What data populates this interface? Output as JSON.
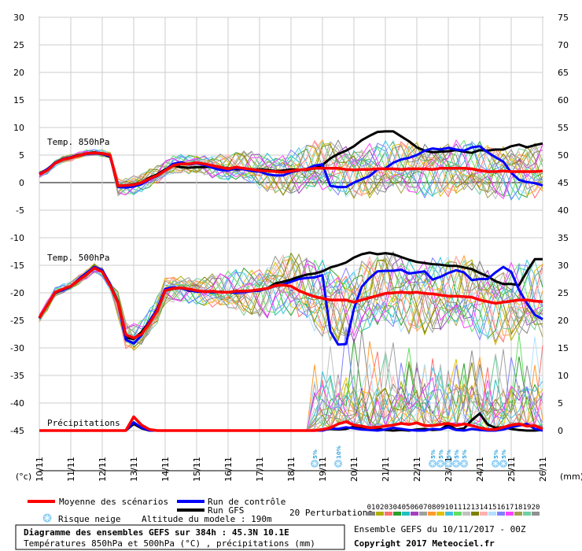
{
  "chart_data": {
    "type": "line",
    "y_left_ticks": [
      "30",
      "25",
      "20",
      "15",
      "10",
      "5",
      "0",
      "-5",
      "-10",
      "-15",
      "-20",
      "-25",
      "-30",
      "-35",
      "-40",
      "-45"
    ],
    "y_right_ticks": [
      "75",
      "70",
      "65",
      "60",
      "55",
      "50",
      "45",
      "40",
      "35",
      "30",
      "25",
      "20",
      "15",
      "10",
      "5",
      "0"
    ],
    "y_left_unit": "(°c)",
    "y_right_unit": "(mm)",
    "ylim_left": [
      -45,
      30
    ],
    "ylim_right": [
      0,
      75
    ],
    "x_labels": [
      "10/11",
      "11/11",
      "12/11",
      "13/11",
      "14/11",
      "15/11",
      "16/11",
      "17/11",
      "18/11",
      "19/11",
      "20/11",
      "21/11",
      "22/11",
      "23/11",
      "24/11",
      "25/11",
      "26/11"
    ],
    "section_labels": {
      "t850": "Temp. 850hPa",
      "t500": "Temp. 500hPa",
      "precip": "Précipitations"
    },
    "x_days": [
      0,
      0.25,
      0.5,
      0.75,
      1,
      1.25,
      1.5,
      1.75,
      2,
      2.25,
      2.5,
      2.75,
      3,
      3.25,
      3.5,
      3.75,
      4,
      4.25,
      4.5,
      4.75,
      5,
      5.25,
      5.5,
      5.75,
      6,
      6.25,
      6.5,
      6.75,
      7,
      7.25,
      7.5,
      7.75,
      8,
      8.25,
      8.5,
      8.75,
      9,
      9.25,
      9.5,
      9.75,
      10,
      10.25,
      10.5,
      10.75,
      11,
      11.25,
      11.5,
      11.75,
      12,
      12.25,
      12.5,
      12.75,
      13,
      13.25,
      13.5,
      13.75,
      14,
      14.25,
      14.5,
      14.75,
      15,
      15.25,
      15.5,
      15.75,
      16
    ],
    "series": [
      {
        "name": "Moyenne des scénarios",
        "role": "t850",
        "color": "#ff0000",
        "values": [
          1.5,
          2.2,
          3.5,
          4.2,
          4.5,
          4.9,
          5.3,
          5.4,
          5.3,
          5.0,
          -0.6,
          -0.5,
          -0.4,
          0,
          0.7,
          1.3,
          2.2,
          3.1,
          3.4,
          3.4,
          3.6,
          3.4,
          3.1,
          2.8,
          2.5,
          2.8,
          2.6,
          2.4,
          2.2,
          2.1,
          2.0,
          1.9,
          2.1,
          2.3,
          2.4,
          2.6,
          2.6,
          2.6,
          2.6,
          2.4,
          2.3,
          2.4,
          2.4,
          2.5,
          2.5,
          2.5,
          2.4,
          2.5,
          2.5,
          2.5,
          2.4,
          2.6,
          2.6,
          2.6,
          2.6,
          2.5,
          2.2,
          2.0,
          2.0,
          2.1,
          2.0,
          2.0,
          2.0,
          2.0,
          2.1
        ]
      },
      {
        "name": "Run de contrôle",
        "role": "t850",
        "color": "#0000ff",
        "values": [
          1.6,
          2.4,
          3.6,
          4.3,
          4.6,
          4.9,
          5.2,
          5.3,
          5.2,
          4.8,
          -0.8,
          -0.9,
          -0.7,
          -0.3,
          0.6,
          1.2,
          2.3,
          3.4,
          3.7,
          3.3,
          3.5,
          3.2,
          2.7,
          2.3,
          2.2,
          2.6,
          2.4,
          2.1,
          2.0,
          1.5,
          1.3,
          1.3,
          1.9,
          2.2,
          2.5,
          3.1,
          3.3,
          -0.6,
          -0.8,
          -0.8,
          0.0,
          0.6,
          1.2,
          2.4,
          2.6,
          3.6,
          4.2,
          4.5,
          5.0,
          5.8,
          6.2,
          6.0,
          6.3,
          6.0,
          5.8,
          6.4,
          6.6,
          5.5,
          4.6,
          3.8,
          1.8,
          0.5,
          0.1,
          -0.1,
          -0.5
        ]
      },
      {
        "name": "Run GFS",
        "role": "t850",
        "color": "#000000",
        "values": [
          1.6,
          2.2,
          3.6,
          4.2,
          4.6,
          5.0,
          5.3,
          5.5,
          5.2,
          4.7,
          -0.6,
          -0.6,
          -0.3,
          0,
          0.9,
          1.5,
          2.4,
          3.1,
          2.8,
          2.7,
          2.8,
          2.8,
          2.9,
          2.6,
          2.6,
          2.4,
          2.5,
          2.4,
          2.4,
          2.3,
          2.1,
          2.2,
          2.4,
          2.3,
          2.3,
          2.6,
          3.2,
          4.4,
          5.2,
          5.8,
          6.6,
          7.7,
          8.5,
          9.2,
          9.3,
          9.3,
          8.4,
          7.5,
          6.4,
          5.8,
          5.5,
          5.6,
          5.7,
          5.9,
          5.6,
          5.4,
          5.9,
          5.8,
          6.0,
          6.0,
          6.6,
          6.9,
          6.4,
          6.8,
          7.1
        ]
      },
      {
        "name": "Moyenne des scénarios",
        "role": "t500",
        "color": "#ff0000",
        "values": [
          -24.5,
          -22.3,
          -19.9,
          -19.3,
          -18.8,
          -17.7,
          -16.7,
          -15.5,
          -16.2,
          -18.7,
          -21.8,
          -27.6,
          -28.2,
          -27.5,
          -25.5,
          -23.3,
          -19.6,
          -19.2,
          -19.1,
          -19.3,
          -19.6,
          -19.8,
          -19.7,
          -19.9,
          -19.9,
          -19.7,
          -19.7,
          -19.6,
          -19.4,
          -19.2,
          -18.7,
          -18.6,
          -18.8,
          -19.6,
          -20.2,
          -20.7,
          -21.0,
          -21.3,
          -21.3,
          -21.3,
          -21.7,
          -21.3,
          -20.9,
          -20.5,
          -20.1,
          -20.0,
          -19.9,
          -20.0,
          -19.9,
          -20.1,
          -20.2,
          -20.4,
          -20.6,
          -20.6,
          -20.7,
          -20.8,
          -21.3,
          -21.6,
          -21.9,
          -21.7,
          -21.5,
          -21.3,
          -21.3,
          -21.5,
          -21.6
        ]
      },
      {
        "name": "Run de contrôle",
        "role": "t500",
        "color": "#0000ff",
        "values": [
          -24.6,
          -22.3,
          -19.9,
          -19.5,
          -18.9,
          -17.5,
          -16.4,
          -15.3,
          -15.9,
          -18.4,
          -21.9,
          -28.5,
          -29.2,
          -27.7,
          -25.1,
          -22.9,
          -19.3,
          -19.0,
          -19.2,
          -19.5,
          -19.8,
          -19.8,
          -19.9,
          -19.9,
          -19.9,
          -20.0,
          -19.9,
          -19.7,
          -19.6,
          -19.2,
          -18.8,
          -18.5,
          -18.0,
          -17.5,
          -17.3,
          -17.2,
          -16.8,
          -27.0,
          -29.4,
          -29.3,
          -22.9,
          -18.9,
          -17.3,
          -16.1,
          -16.0,
          -16.0,
          -15.8,
          -16.5,
          -16.3,
          -16.1,
          -17.6,
          -17.1,
          -16.4,
          -15.9,
          -16.3,
          -17.7,
          -17.5,
          -17.5,
          -16.3,
          -15.3,
          -16.2,
          -19.5,
          -21.9,
          -24.0,
          -24.8
        ]
      },
      {
        "name": "Run GFS",
        "role": "t500",
        "color": "#000000",
        "values": [
          -24.6,
          -22.2,
          -20.0,
          -19.5,
          -18.8,
          -17.6,
          -16.7,
          -15.3,
          -16.0,
          -18.5,
          -21.6,
          -28.1,
          -28.4,
          -27.1,
          -25.2,
          -23.0,
          -19.5,
          -19.3,
          -19.1,
          -19.6,
          -19.7,
          -19.8,
          -19.9,
          -19.8,
          -19.9,
          -19.7,
          -19.7,
          -19.6,
          -19.6,
          -19.2,
          -18.3,
          -18.0,
          -17.6,
          -17.1,
          -16.7,
          -16.5,
          -16.1,
          -15.4,
          -15.0,
          -14.5,
          -13.6,
          -13.0,
          -12.7,
          -13.0,
          -12.8,
          -13.0,
          -13.5,
          -14.0,
          -14.4,
          -14.6,
          -14.8,
          -14.9,
          -15.1,
          -15.1,
          -15.4,
          -15.7,
          -16.4,
          -17.0,
          -17.9,
          -18.4,
          -18.4,
          -18.6,
          -16.1,
          -13.9,
          -13.9
        ]
      },
      {
        "name": "Moyenne des scénarios",
        "role": "precip",
        "color": "#ff0000",
        "values": [
          0,
          0,
          0,
          0,
          0,
          0,
          0,
          0,
          0,
          0,
          0,
          0,
          2.5,
          1.0,
          0.2,
          0,
          0,
          0,
          0,
          0,
          0,
          0,
          0,
          0,
          0,
          0,
          0,
          0,
          0,
          0,
          0,
          0,
          0,
          0,
          0,
          0,
          0.2,
          0.5,
          1.2,
          1.6,
          1.0,
          0.8,
          0.5,
          0.6,
          0.8,
          1.0,
          1.3,
          1.1,
          1.4,
          0.9,
          0.9,
          1.1,
          1.3,
          0.9,
          1.2,
          0.9,
          0.5,
          0.2,
          0.2,
          0.6,
          1.0,
          1.2,
          0.8,
          0.9,
          0.3
        ]
      },
      {
        "name": "Run de contrôle",
        "role": "precip",
        "color": "#0000ff",
        "values": [
          0,
          0,
          0,
          0,
          0,
          0,
          0,
          0,
          0,
          0,
          0,
          0,
          1.5,
          0.5,
          0,
          0,
          0,
          0,
          0,
          0,
          0,
          0,
          0,
          0,
          0,
          0,
          0,
          0,
          0,
          0,
          0,
          0,
          0,
          0,
          0,
          0,
          0,
          0.4,
          0.3,
          0.6,
          0.4,
          0.2,
          0.1,
          0,
          0.2,
          0.5,
          0.3,
          0.1,
          0,
          0,
          0.3,
          0.2,
          0.6,
          0.1,
          0,
          0.3,
          0.1,
          0,
          0,
          0.2,
          0.6,
          0.9,
          1.2,
          0.3,
          0
        ]
      },
      {
        "name": "Run GFS",
        "role": "precip",
        "color": "#000000",
        "values": [
          0,
          0,
          0,
          0,
          0,
          0,
          0,
          0,
          0,
          0,
          0,
          0,
          1.2,
          0.4,
          0,
          0,
          0,
          0,
          0,
          0,
          0,
          0,
          0,
          0,
          0,
          0,
          0,
          0,
          0,
          0,
          0,
          0,
          0,
          0,
          0,
          0,
          0.1,
          0.3,
          0.2,
          0.3,
          0.7,
          0.6,
          0.4,
          0.3,
          0.1,
          0,
          0.1,
          0,
          0.2,
          0.3,
          0.1,
          0.2,
          1.1,
          0.2,
          0.4,
          1.9,
          3.1,
          1.1,
          0.5,
          0.6,
          0.3,
          0.1,
          0,
          0,
          0.1
        ]
      }
    ],
    "snow_risk": [
      {
        "x": 8.75,
        "label": "5%"
      },
      {
        "x": 9.5,
        "label": "10%"
      },
      {
        "x": 12.5,
        "label": "5%"
      },
      {
        "x": 12.75,
        "label": "5%"
      },
      {
        "x": 13.0,
        "label": "5%"
      },
      {
        "x": 13.25,
        "label": "5%"
      },
      {
        "x": 13.5,
        "label": "5%"
      },
      {
        "x": 14.5,
        "label": "5%"
      },
      {
        "x": 14.75,
        "label": "5%"
      }
    ],
    "perturbation_count": 20
  },
  "legend": {
    "mean_label": "Moyenne des scénarios",
    "mean_color": "#ff0000",
    "control_label": "Run de contrôle",
    "control_color": "#0000ff",
    "gfs_label": "Run GFS",
    "gfs_color": "#000000",
    "snow_label": "Risque neige",
    "altitude_label": "Altitude du modele : 190m",
    "perturbations_label": "20 Perturbations",
    "perturbation_ids": [
      "01",
      "02",
      "03",
      "04",
      "05",
      "06",
      "07",
      "08",
      "09",
      "10",
      "11",
      "12",
      "13",
      "14",
      "15",
      "16",
      "17",
      "18",
      "19",
      "20"
    ],
    "perturbation_colors": [
      "#808080",
      "#b0b000",
      "#ff7070",
      "#2aa02a",
      "#20c0c0",
      "#a040c0",
      "#a0a0a0",
      "#ff9a30",
      "#e0c000",
      "#40c0e0",
      "#60e060",
      "#c0c0c0",
      "#808000",
      "#ffb0b0",
      "#b0e0ff",
      "#8080ff",
      "#ff40ff",
      "#a0a050",
      "#70d0a0",
      "#909090"
    ]
  },
  "footer": {
    "title": "Diagramme des ensembles GEFS sur 384h : 45.3N 10.1E",
    "subtitle": "Températures 850hPa et 500hPa (°C) , précipitations (mm)",
    "run_info": "Ensemble GEFS du 10/11/2017 - 00Z",
    "copyright": "Copyright 2017 Meteociel.fr"
  }
}
